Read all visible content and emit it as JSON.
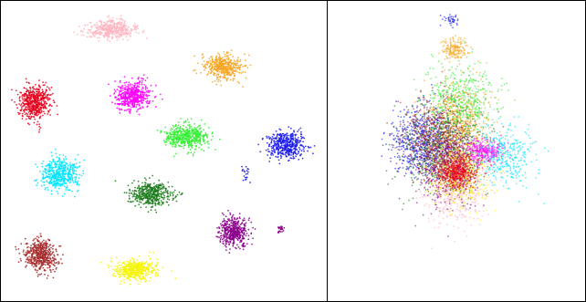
{
  "chart_data": [
    {
      "type": "scatter",
      "title": "",
      "xlabel": "",
      "ylabel": "",
      "grid": false,
      "legend": "none",
      "axes_visible": false,
      "xlim": [
        0,
        100
      ],
      "ylim": [
        0,
        100
      ],
      "clusters": [
        {
          "color": "#ffb6c1",
          "center": [
            33,
            92
          ],
          "spread": [
            8,
            3.2
          ],
          "points": 450
        },
        {
          "color": "#f5a623",
          "center": [
            69,
            79
          ],
          "spread": [
            6,
            4.5
          ],
          "points": 450
        },
        {
          "color": "#e8001c",
          "center": [
            9,
            67
          ],
          "spread": [
            5,
            6
          ],
          "points": 550
        },
        {
          "color": "#ff00ff",
          "center": [
            40,
            69
          ],
          "spread": [
            5.5,
            5
          ],
          "points": 500
        },
        {
          "color": "#33ee33",
          "center": [
            57,
            55
          ],
          "spread": [
            7,
            4
          ],
          "points": 500
        },
        {
          "color": "#1a1aee",
          "center": [
            89,
            52
          ],
          "spread": [
            6,
            4.5
          ],
          "points": 450
        },
        {
          "color": "#00e5ff",
          "center": [
            17,
            42
          ],
          "spread": [
            6,
            5.5
          ],
          "points": 500
        },
        {
          "color": "#1a7a1a",
          "center": [
            46,
            35
          ],
          "spread": [
            7,
            4
          ],
          "points": 450
        },
        {
          "color": "#8b008b",
          "center": [
            72,
            22
          ],
          "spread": [
            4.5,
            5
          ],
          "points": 450
        },
        {
          "color": "#a52a2a",
          "center": [
            11,
            14
          ],
          "spread": [
            5,
            5.5
          ],
          "points": 500
        },
        {
          "color": "#f5f500",
          "center": [
            41,
            9
          ],
          "spread": [
            6.5,
            3.5
          ],
          "points": 450
        },
        {
          "color": "#8b008b",
          "center": [
            87,
            23
          ],
          "spread": [
            1.2,
            1.5
          ],
          "points": 25
        },
        {
          "color": "#1a1aee",
          "center": [
            76,
            42
          ],
          "spread": [
            1.5,
            4
          ],
          "points": 20
        }
      ]
    },
    {
      "type": "scatter",
      "title": "",
      "xlabel": "",
      "ylabel": "",
      "grid": false,
      "legend": "none",
      "axes_visible": false,
      "xlim": [
        0,
        100
      ],
      "ylim": [
        0,
        100
      ],
      "clusters": [
        {
          "color": "#1a1aee",
          "center": [
            37,
            53
          ],
          "spread": [
            14,
            12
          ],
          "points": 700
        },
        {
          "color": "#1a7a1a",
          "center": [
            45,
            50
          ],
          "spread": [
            16,
            15
          ],
          "points": 700
        },
        {
          "color": "#f5a623",
          "center": [
            51,
            60
          ],
          "spread": [
            12,
            16
          ],
          "points": 600
        },
        {
          "color": "#ffb6c1",
          "center": [
            50,
            38
          ],
          "spread": [
            12,
            12
          ],
          "points": 600
        },
        {
          "color": "#8b008b",
          "center": [
            47,
            45
          ],
          "spread": [
            13,
            13
          ],
          "points": 500
        },
        {
          "color": "#a52a2a",
          "center": [
            42,
            55
          ],
          "spread": [
            14,
            13
          ],
          "points": 500
        },
        {
          "color": "#33ee33",
          "center": [
            52,
            68
          ],
          "spread": [
            14,
            13
          ],
          "points": 450
        },
        {
          "color": "#f5f500",
          "center": [
            52,
            42
          ],
          "spread": [
            13,
            11
          ],
          "points": 450
        },
        {
          "color": "#e8001c",
          "center": [
            50,
            43
          ],
          "spread": [
            8,
            6
          ],
          "points": 500
        },
        {
          "color": "#ff00ff",
          "center": [
            62,
            50
          ],
          "spread": [
            7,
            4
          ],
          "points": 300
        },
        {
          "color": "#00e5ff",
          "center": [
            70,
            48
          ],
          "spread": [
            12,
            10
          ],
          "points": 350
        },
        {
          "color": "#f5a623",
          "center": [
            49,
            85
          ],
          "spread": [
            5,
            4
          ],
          "points": 180
        },
        {
          "color": "#1a1aee",
          "center": [
            48,
            95
          ],
          "spread": [
            3,
            2
          ],
          "points": 40
        }
      ]
    }
  ]
}
